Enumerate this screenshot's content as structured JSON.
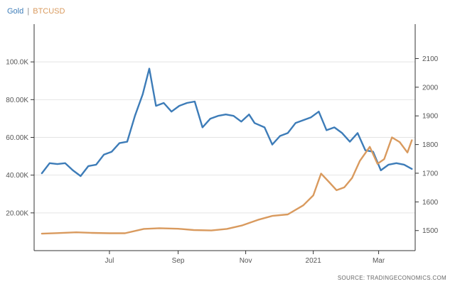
{
  "legend": {
    "series1": "Gold",
    "separator": "|",
    "series2": "BTCUSD"
  },
  "source": "SOURCE: TRADINGECONOMICS.COM",
  "colors": {
    "gold": "#3d7cb8",
    "btcusd": "#d99a5e",
    "grid": "#e4e4e4",
    "axis": "#333333"
  },
  "chart_data": {
    "type": "line",
    "grid": true,
    "legend_position": "top-left",
    "x": [
      "Jul",
      "Sep",
      "Nov",
      "2021",
      "Mar"
    ],
    "x_ticks": [
      "Jul",
      "Sep",
      "Nov",
      "2021",
      "Mar"
    ],
    "ylim_left": [
      0,
      120000
    ],
    "yticks_left": [
      "20.00K",
      "40.00K",
      "60.00K",
      "80.00K",
      "100.0K"
    ],
    "ylim_right": [
      1430,
      2220
    ],
    "yticks_right": [
      "1500",
      "1600",
      "1700",
      "1800",
      "1900",
      "2000",
      "2100"
    ],
    "series": [
      {
        "name": "Gold",
        "axis": "right",
        "x": [
          "2020-05-01",
          "2020-05-08",
          "2020-05-15",
          "2020-05-22",
          "2020-05-29",
          "2020-06-05",
          "2020-06-12",
          "2020-06-19",
          "2020-06-26",
          "2020-07-03",
          "2020-07-10",
          "2020-07-17",
          "2020-07-24",
          "2020-07-31",
          "2020-08-06",
          "2020-08-12",
          "2020-08-19",
          "2020-08-26",
          "2020-09-02",
          "2020-09-09",
          "2020-09-16",
          "2020-09-23",
          "2020-09-30",
          "2020-10-07",
          "2020-10-14",
          "2020-10-21",
          "2020-10-28",
          "2020-11-04",
          "2020-11-09",
          "2020-11-18",
          "2020-11-25",
          "2020-12-02",
          "2020-12-09",
          "2020-12-16",
          "2020-12-23",
          "2020-12-30",
          "2021-01-06",
          "2021-01-13",
          "2021-01-20",
          "2021-01-27",
          "2021-02-03",
          "2021-02-10",
          "2021-02-17",
          "2021-02-24",
          "2021-03-03",
          "2021-03-10",
          "2021-03-17",
          "2021-03-24",
          "2021-03-31"
        ],
        "y": [
          1700,
          1735,
          1732,
          1735,
          1710,
          1690,
          1725,
          1730,
          1765,
          1775,
          1805,
          1810,
          1900,
          1975,
          2065,
          1935,
          1945,
          1915,
          1935,
          1945,
          1950,
          1860,
          1890,
          1900,
          1905,
          1900,
          1880,
          1905,
          1875,
          1860,
          1800,
          1830,
          1840,
          1875,
          1885,
          1895,
          1915,
          1850,
          1860,
          1840,
          1810,
          1840,
          1780,
          1775,
          1710,
          1730,
          1735,
          1730,
          1715
        ]
      },
      {
        "name": "BTCUSD",
        "axis": "left",
        "x": [
          "2020-05-01",
          "2020-05-15",
          "2020-06-01",
          "2020-06-15",
          "2020-07-01",
          "2020-07-15",
          "2020-08-01",
          "2020-08-15",
          "2020-09-01",
          "2020-09-15",
          "2020-10-01",
          "2020-10-15",
          "2020-10-29",
          "2020-11-12",
          "2020-11-25",
          "2020-12-09",
          "2020-12-23",
          "2021-01-01",
          "2021-01-08",
          "2021-01-15",
          "2021-01-22",
          "2021-01-29",
          "2021-02-05",
          "2021-02-12",
          "2021-02-21",
          "2021-02-28",
          "2021-03-06",
          "2021-03-13",
          "2021-03-20",
          "2021-03-27",
          "2021-03-31"
        ],
        "y": [
          9000,
          9300,
          9700,
          9400,
          9200,
          9200,
          11500,
          11900,
          11600,
          10900,
          10700,
          11500,
          13400,
          16300,
          18400,
          19200,
          24000,
          29300,
          40800,
          36500,
          32000,
          33500,
          38500,
          47500,
          55000,
          46000,
          48500,
          60000,
          57500,
          52000,
          58500
        ]
      }
    ]
  }
}
